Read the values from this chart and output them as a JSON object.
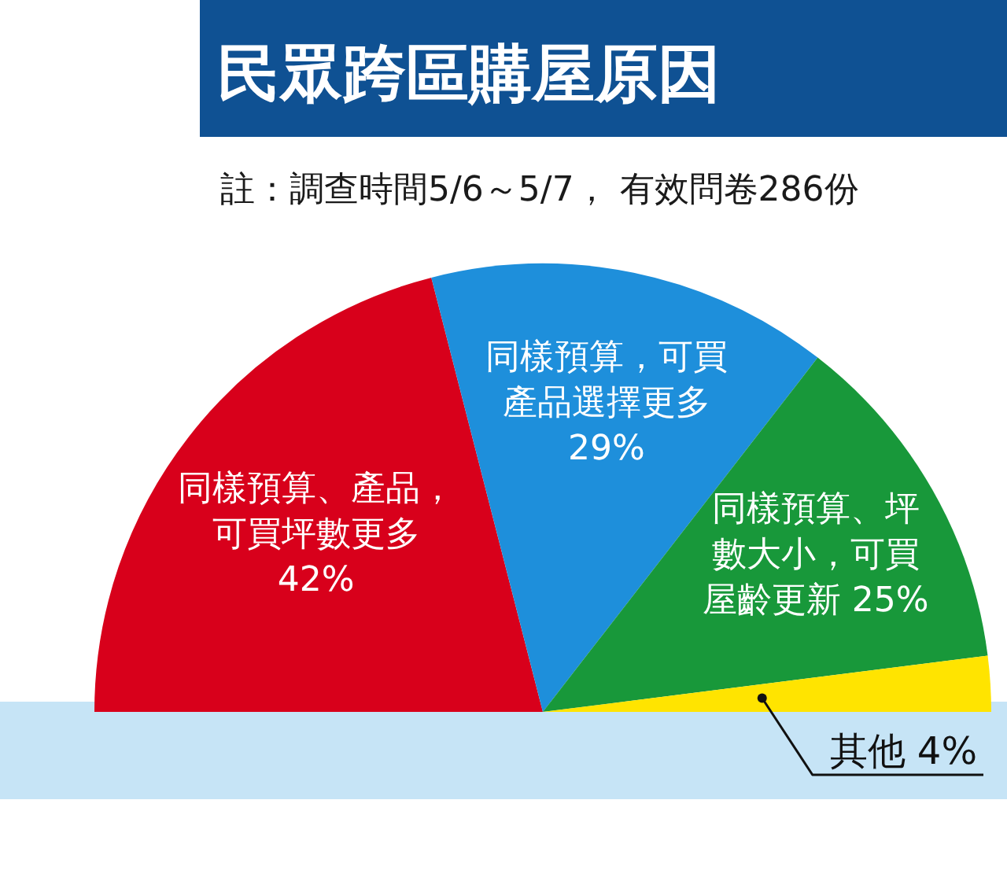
{
  "chart_data": {
    "type": "pie",
    "title": "民眾跨區購屋原因",
    "subtitle": "註：調查時間5/6～5/7， 有效問卷286份",
    "categories": [
      "同樣預算、產品，可買坪數更多",
      "同樣預算，可買產品選擇更多",
      "同樣預算、坪數大小，可買屋齡更新",
      "其他"
    ],
    "values": [
      42,
      29,
      25,
      4
    ],
    "colors": [
      "#d8001b",
      "#1e8fdb",
      "#18983a",
      "#ffe400"
    ],
    "value_labels": [
      "42%",
      "29%",
      "25%",
      "4%"
    ]
  }
}
